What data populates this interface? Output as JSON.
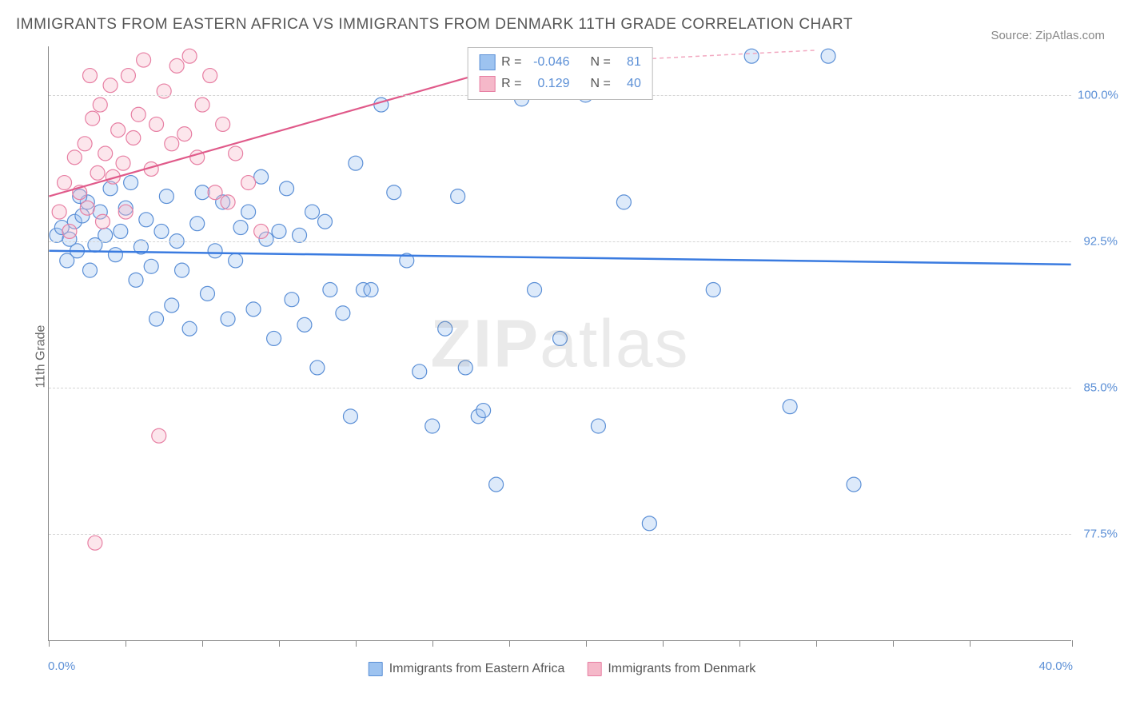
{
  "title": "IMMIGRANTS FROM EASTERN AFRICA VS IMMIGRANTS FROM DENMARK 11TH GRADE CORRELATION CHART",
  "source": "Source: ZipAtlas.com",
  "y_axis_label": "11th Grade",
  "watermark": {
    "bold": "ZIP",
    "rest": "atlas"
  },
  "chart": {
    "type": "scatter",
    "background_color": "#ffffff",
    "grid_color": "#d5d5d5",
    "border_color": "#888888",
    "xlim": [
      0.0,
      40.0
    ],
    "ylim": [
      72.0,
      102.5
    ],
    "x_min_label": "0.0%",
    "x_max_label": "40.0%",
    "y_ticks": [
      77.5,
      85.0,
      92.5,
      100.0
    ],
    "y_tick_labels": [
      "77.5%",
      "85.0%",
      "92.5%",
      "100.0%"
    ],
    "x_tick_positions": [
      0,
      3,
      6,
      9,
      12,
      15,
      18,
      21,
      24,
      27,
      30,
      33,
      36,
      40
    ],
    "marker_radius": 9,
    "marker_fill_opacity": 0.35,
    "marker_stroke_width": 1.2,
    "series": [
      {
        "name": "Immigrants from Eastern Africa",
        "color_fill": "#9dc3f0",
        "color_stroke": "#5b8fd6",
        "R": "-0.046",
        "N": "81",
        "trend": {
          "x1": 0.0,
          "y1": 92.0,
          "x2": 40.0,
          "y2": 91.3,
          "stroke": "#3a7be0",
          "stroke_width": 2.5,
          "dash": "none"
        },
        "points": [
          [
            0.3,
            92.8
          ],
          [
            0.5,
            93.2
          ],
          [
            0.7,
            91.5
          ],
          [
            0.8,
            92.6
          ],
          [
            1.0,
            93.5
          ],
          [
            1.1,
            92.0
          ],
          [
            1.3,
            93.8
          ],
          [
            1.5,
            94.5
          ],
          [
            1.6,
            91.0
          ],
          [
            1.8,
            92.3
          ],
          [
            2.0,
            94.0
          ],
          [
            2.2,
            92.8
          ],
          [
            2.4,
            95.2
          ],
          [
            2.6,
            91.8
          ],
          [
            2.8,
            93.0
          ],
          [
            3.0,
            94.2
          ],
          [
            3.2,
            95.5
          ],
          [
            3.4,
            90.5
          ],
          [
            3.6,
            92.2
          ],
          [
            3.8,
            93.6
          ],
          [
            4.0,
            91.2
          ],
          [
            4.2,
            88.5
          ],
          [
            4.4,
            93.0
          ],
          [
            4.6,
            94.8
          ],
          [
            4.8,
            89.2
          ],
          [
            5.0,
            92.5
          ],
          [
            5.2,
            91.0
          ],
          [
            5.5,
            88.0
          ],
          [
            5.8,
            93.4
          ],
          [
            6.0,
            95.0
          ],
          [
            6.2,
            89.8
          ],
          [
            6.5,
            92.0
          ],
          [
            6.8,
            94.5
          ],
          [
            7.0,
            88.5
          ],
          [
            7.3,
            91.5
          ],
          [
            7.5,
            93.2
          ],
          [
            7.8,
            94.0
          ],
          [
            8.0,
            89.0
          ],
          [
            8.3,
            95.8
          ],
          [
            8.5,
            92.6
          ],
          [
            8.8,
            87.5
          ],
          [
            9.0,
            93.0
          ],
          [
            9.3,
            95.2
          ],
          [
            9.5,
            89.5
          ],
          [
            9.8,
            92.8
          ],
          [
            10.0,
            88.2
          ],
          [
            10.3,
            94.0
          ],
          [
            10.5,
            86.0
          ],
          [
            10.8,
            93.5
          ],
          [
            11.0,
            90.0
          ],
          [
            11.5,
            88.8
          ],
          [
            11.8,
            83.5
          ],
          [
            12.0,
            96.5
          ],
          [
            12.3,
            90.0
          ],
          [
            12.6,
            90.0
          ],
          [
            13.0,
            99.5
          ],
          [
            13.5,
            95.0
          ],
          [
            14.0,
            91.5
          ],
          [
            14.5,
            85.8
          ],
          [
            15.0,
            83.0
          ],
          [
            15.5,
            88.0
          ],
          [
            16.0,
            94.8
          ],
          [
            16.3,
            86.0
          ],
          [
            16.8,
            83.5
          ],
          [
            17.0,
            83.8
          ],
          [
            17.5,
            80.0
          ],
          [
            18.0,
            102.0
          ],
          [
            18.5,
            99.8
          ],
          [
            19.0,
            90.0
          ],
          [
            20.0,
            87.5
          ],
          [
            21.0,
            100.0
          ],
          [
            21.5,
            83.0
          ],
          [
            22.5,
            94.5
          ],
          [
            23.0,
            102.0
          ],
          [
            23.5,
            78.0
          ],
          [
            26.0,
            90.0
          ],
          [
            27.5,
            102.0
          ],
          [
            29.0,
            84.0
          ],
          [
            30.5,
            102.0
          ],
          [
            31.5,
            80.0
          ],
          [
            1.2,
            94.8
          ]
        ]
      },
      {
        "name": "Immigrants from Denmark",
        "color_fill": "#f5b8c9",
        "color_stroke": "#e77fa3",
        "R": "0.129",
        "N": "40",
        "trend": {
          "x1": 0.0,
          "y1": 94.8,
          "x2": 18.0,
          "y2": 101.5,
          "stroke": "#e05a8a",
          "stroke_width": 2.2,
          "dash": "none"
        },
        "trend_ext": {
          "x1": 18.0,
          "y1": 101.5,
          "x2": 30.0,
          "y2": 102.3,
          "stroke": "#f2a8c0",
          "stroke_width": 1.5,
          "dash": "5,4"
        },
        "points": [
          [
            0.4,
            94.0
          ],
          [
            0.6,
            95.5
          ],
          [
            0.8,
            93.0
          ],
          [
            1.0,
            96.8
          ],
          [
            1.2,
            95.0
          ],
          [
            1.4,
            97.5
          ],
          [
            1.5,
            94.2
          ],
          [
            1.7,
            98.8
          ],
          [
            1.9,
            96.0
          ],
          [
            2.0,
            99.5
          ],
          [
            2.2,
            97.0
          ],
          [
            2.4,
            100.5
          ],
          [
            2.5,
            95.8
          ],
          [
            2.7,
            98.2
          ],
          [
            2.9,
            96.5
          ],
          [
            3.1,
            101.0
          ],
          [
            3.3,
            97.8
          ],
          [
            3.5,
            99.0
          ],
          [
            3.7,
            101.8
          ],
          [
            4.0,
            96.2
          ],
          [
            4.2,
            98.5
          ],
          [
            4.5,
            100.2
          ],
          [
            4.8,
            97.5
          ],
          [
            5.0,
            101.5
          ],
          [
            5.3,
            98.0
          ],
          [
            5.5,
            102.0
          ],
          [
            5.8,
            96.8
          ],
          [
            6.0,
            99.5
          ],
          [
            6.3,
            101.0
          ],
          [
            6.5,
            95.0
          ],
          [
            6.8,
            98.5
          ],
          [
            7.0,
            94.5
          ],
          [
            7.3,
            97.0
          ],
          [
            7.8,
            95.5
          ],
          [
            8.3,
            93.0
          ],
          [
            1.8,
            77.0
          ],
          [
            4.3,
            82.5
          ],
          [
            2.1,
            93.5
          ],
          [
            3.0,
            94.0
          ],
          [
            1.6,
            101.0
          ]
        ]
      }
    ]
  },
  "bottom_legend": [
    {
      "label": "Immigrants from Eastern Africa",
      "fill": "#9dc3f0",
      "stroke": "#5b8fd6"
    },
    {
      "label": "Immigrants from Denmark",
      "fill": "#f5b8c9",
      "stroke": "#e77fa3"
    }
  ],
  "stats_legend": {
    "rows": [
      {
        "fill": "#9dc3f0",
        "stroke": "#5b8fd6",
        "R_label": "R =",
        "R": "-0.046",
        "N_label": "N =",
        "N": "81"
      },
      {
        "fill": "#f5b8c9",
        "stroke": "#e77fa3",
        "R_label": "R =",
        "R": "0.129",
        "N_label": "N =",
        "N": "40"
      }
    ]
  }
}
